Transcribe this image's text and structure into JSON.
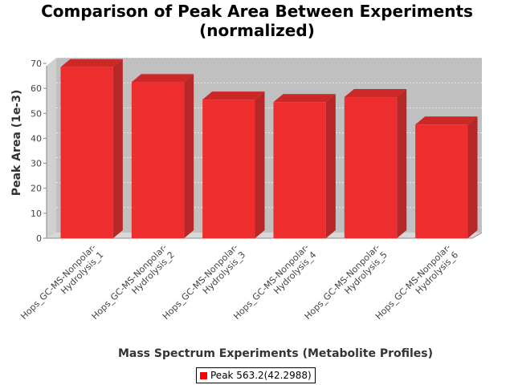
{
  "chart_data": {
    "type": "bar",
    "title_line1": "Comparison of Peak Area Between Experiments",
    "title_line2": "(normalized)",
    "xlabel": "Mass Spectrum Experiments (Metabolite Profiles)",
    "ylabel": "Peak Area (1e-3)",
    "ylim": [
      0,
      70
    ],
    "yticks": [
      0,
      10,
      20,
      30,
      40,
      50,
      60,
      70
    ],
    "categories": [
      [
        "Hops_GC-MS-Nonpolar-",
        "Hydrolysis_1"
      ],
      [
        "Hops_GC-MS-Nonpolar-",
        "Hydrolysis_2"
      ],
      [
        "Hops_GC-MS-Nonpolar-",
        "Hydrolysis_3"
      ],
      [
        "Hops_GC-MS-Nonpolar-",
        "Hydrolysis_4"
      ],
      [
        "Hops_GC-MS-Nonpolar-",
        "Hydrolysis_5"
      ],
      [
        "Hops_GC-MS-Nonpolar-",
        "Hydrolysis_6"
      ]
    ],
    "series": [
      {
        "name": "Peak 563.2(42.2988)",
        "values": [
          68.5,
          62.5,
          55.5,
          54.5,
          56.5,
          45.5
        ]
      }
    ],
    "grid": true,
    "legend_position": "bottom",
    "colors": {
      "bar": "#ee2e2e",
      "bar_side": "#b62828",
      "bar_top": "#cc2828",
      "plot_bg": "#c0c0c0",
      "legend_swatch": "#ff0000"
    }
  }
}
